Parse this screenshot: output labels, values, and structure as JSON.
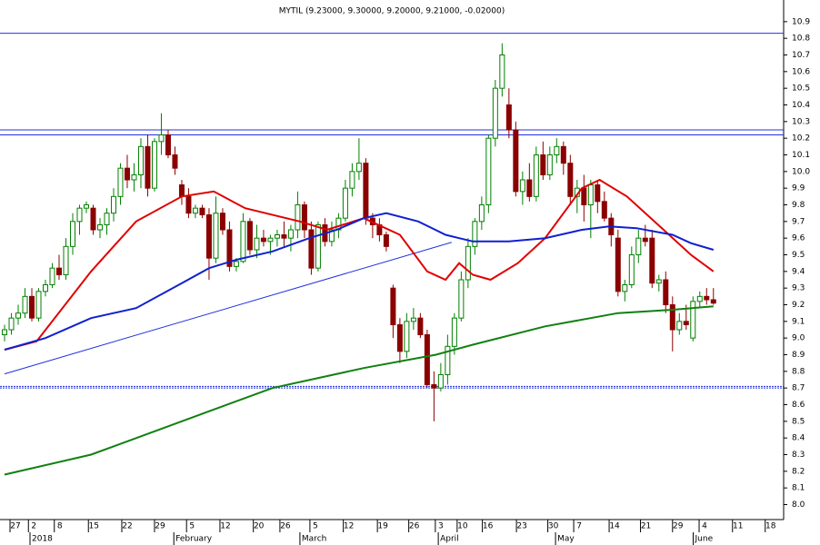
{
  "chart_data": {
    "type": "candlestick",
    "title": "MYTIL (9.23000, 9.30000, 9.20000, 9.21000, -0.02000)",
    "xlim": [
      -0.67,
      114.3
    ],
    "ylim": [
      7.91,
      11.03
    ],
    "yticks": [
      {
        "value": 8,
        "label": "8.0"
      },
      8.1,
      8.2,
      8.3,
      8.4,
      8.5,
      8.6,
      8.7,
      8.8,
      8.9,
      {
        "value": 9,
        "label": "9.0"
      },
      9.1,
      9.2,
      9.3,
      9.4,
      9.5,
      9.6,
      9.7,
      9.8,
      9.9,
      {
        "value": 10,
        "label": "10.0"
      },
      10.1,
      10.2,
      10.3,
      10.4,
      10.5,
      10.6,
      10.7,
      10.8,
      10.9
    ],
    "xticks": [
      {
        "value": 1.6,
        "label": "27"
      },
      {
        "value": 4.3,
        "label": "2"
      },
      {
        "value": 8.1,
        "label": "8"
      },
      {
        "value": 13.1,
        "label": "15"
      },
      {
        "value": 18.0,
        "label": "22"
      },
      {
        "value": 22.8,
        "label": "29"
      },
      {
        "value": 27.5,
        "label": "5"
      },
      {
        "value": 32.4,
        "label": "12"
      },
      {
        "value": 37.3,
        "label": "20"
      },
      {
        "value": 41.2,
        "label": "26"
      },
      {
        "value": 45.6,
        "label": "5"
      },
      {
        "value": 50.5,
        "label": "12"
      },
      {
        "value": 55.5,
        "label": "19"
      },
      {
        "value": 60.1,
        "label": "26"
      },
      {
        "value": 64.0,
        "label": "3"
      },
      {
        "value": 67.2,
        "label": "10"
      },
      {
        "value": 70.9,
        "label": "16"
      },
      {
        "value": 75.9,
        "label": "23"
      },
      {
        "value": 80.5,
        "label": "30"
      },
      {
        "value": 84.3,
        "label": "7"
      },
      {
        "value": 89.5,
        "label": "14"
      },
      {
        "value": 94.1,
        "label": "21"
      },
      {
        "value": 98.8,
        "label": "29"
      },
      {
        "value": 102.7,
        "label": "4"
      },
      {
        "value": 107.6,
        "label": "11"
      },
      {
        "value": 112.4,
        "label": "18"
      }
    ],
    "period_labels": [
      {
        "value": 4.0,
        "label": "2018"
      },
      {
        "value": 25.1,
        "label": "February"
      },
      {
        "value": 43.6,
        "label": "March"
      },
      {
        "value": 63.9,
        "label": "April"
      },
      {
        "value": 81.1,
        "label": "May"
      },
      {
        "value": 101.3,
        "label": "June"
      }
    ],
    "up_color": "#008000",
    "down_color": "#8b0000",
    "candles": [
      {
        "o": 9.02,
        "h": 9.08,
        "l": 8.98,
        "c": 9.05
      },
      {
        "o": 9.05,
        "h": 9.15,
        "l": 9.02,
        "c": 9.12
      },
      {
        "o": 9.12,
        "h": 9.2,
        "l": 9.08,
        "c": 9.15
      },
      {
        "o": 9.15,
        "h": 9.3,
        "l": 9.12,
        "c": 9.25
      },
      {
        "o": 9.25,
        "h": 9.3,
        "l": 9.1,
        "c": 9.12
      },
      {
        "o": 9.12,
        "h": 9.3,
        "l": 9.1,
        "c": 9.28
      },
      {
        "o": 9.28,
        "h": 9.35,
        "l": 9.25,
        "c": 9.32
      },
      {
        "o": 9.32,
        "h": 9.45,
        "l": 9.3,
        "c": 9.42
      },
      {
        "o": 9.42,
        "h": 9.5,
        "l": 9.35,
        "c": 9.38
      },
      {
        "o": 9.38,
        "h": 9.6,
        "l": 9.35,
        "c": 9.55
      },
      {
        "o": 9.55,
        "h": 9.75,
        "l": 9.5,
        "c": 9.7
      },
      {
        "o": 9.7,
        "h": 9.8,
        "l": 9.62,
        "c": 9.78
      },
      {
        "o": 9.78,
        "h": 9.82,
        "l": 9.75,
        "c": 9.8
      },
      {
        "o": 9.78,
        "h": 9.8,
        "l": 9.62,
        "c": 9.65
      },
      {
        "o": 9.65,
        "h": 9.72,
        "l": 9.6,
        "c": 9.68
      },
      {
        "o": 9.68,
        "h": 9.78,
        "l": 9.62,
        "c": 9.75
      },
      {
        "o": 9.75,
        "h": 9.9,
        "l": 9.7,
        "c": 9.85
      },
      {
        "o": 9.85,
        "h": 10.05,
        "l": 9.8,
        "c": 10.02
      },
      {
        "o": 10.02,
        "h": 10.1,
        "l": 9.9,
        "c": 9.95
      },
      {
        "o": 9.95,
        "h": 10.05,
        "l": 9.88,
        "c": 9.98
      },
      {
        "o": 9.98,
        "h": 10.2,
        "l": 9.9,
        "c": 10.15
      },
      {
        "o": 10.15,
        "h": 10.22,
        "l": 9.85,
        "c": 9.9
      },
      {
        "o": 9.9,
        "h": 10.2,
        "l": 9.88,
        "c": 10.18
      },
      {
        "o": 10.18,
        "h": 10.35,
        "l": 10.1,
        "c": 10.22
      },
      {
        "o": 10.22,
        "h": 10.25,
        "l": 10.08,
        "c": 10.1
      },
      {
        "o": 10.1,
        "h": 10.15,
        "l": 9.98,
        "c": 10.02
      },
      {
        "o": 9.92,
        "h": 9.95,
        "l": 9.8,
        "c": 9.85
      },
      {
        "o": 9.85,
        "h": 9.9,
        "l": 9.72,
        "c": 9.75
      },
      {
        "o": 9.75,
        "h": 9.8,
        "l": 9.72,
        "c": 9.78
      },
      {
        "o": 9.78,
        "h": 9.8,
        "l": 9.72,
        "c": 9.74
      },
      {
        "o": 9.74,
        "h": 9.78,
        "l": 9.35,
        "c": 9.48
      },
      {
        "o": 9.48,
        "h": 9.85,
        "l": 9.45,
        "c": 9.75
      },
      {
        "o": 9.75,
        "h": 9.78,
        "l": 9.62,
        "c": 9.65
      },
      {
        "o": 9.65,
        "h": 9.7,
        "l": 9.4,
        "c": 9.43
      },
      {
        "o": 9.43,
        "h": 9.48,
        "l": 9.4,
        "c": 9.46
      },
      {
        "o": 9.46,
        "h": 9.75,
        "l": 9.45,
        "c": 9.7
      },
      {
        "o": 9.7,
        "h": 9.72,
        "l": 9.5,
        "c": 9.53
      },
      {
        "o": 9.53,
        "h": 9.68,
        "l": 9.48,
        "c": 9.6
      },
      {
        "o": 9.6,
        "h": 9.65,
        "l": 9.55,
        "c": 9.58
      },
      {
        "o": 9.58,
        "h": 9.62,
        "l": 9.5,
        "c": 9.6
      },
      {
        "o": 9.6,
        "h": 9.65,
        "l": 9.55,
        "c": 9.62
      },
      {
        "o": 9.62,
        "h": 9.7,
        "l": 9.55,
        "c": 9.6
      },
      {
        "o": 9.6,
        "h": 9.68,
        "l": 9.52,
        "c": 9.65
      },
      {
        "o": 9.65,
        "h": 9.88,
        "l": 9.6,
        "c": 9.8
      },
      {
        "o": 9.8,
        "h": 9.82,
        "l": 9.6,
        "c": 9.65
      },
      {
        "o": 9.65,
        "h": 9.7,
        "l": 9.38,
        "c": 9.42
      },
      {
        "o": 9.42,
        "h": 9.7,
        "l": 9.4,
        "c": 9.68
      },
      {
        "o": 9.68,
        "h": 9.72,
        "l": 9.55,
        "c": 9.58
      },
      {
        "o": 9.58,
        "h": 9.7,
        "l": 9.55,
        "c": 9.65
      },
      {
        "o": 9.65,
        "h": 9.75,
        "l": 9.6,
        "c": 9.72
      },
      {
        "o": 9.72,
        "h": 9.95,
        "l": 9.7,
        "c": 9.9
      },
      {
        "o": 9.9,
        "h": 10.05,
        "l": 9.85,
        "c": 10.0
      },
      {
        "o": 10.0,
        "h": 10.2,
        "l": 9.95,
        "c": 10.05
      },
      {
        "o": 10.05,
        "h": 10.08,
        "l": 9.68,
        "c": 9.72
      },
      {
        "o": 9.72,
        "h": 9.75,
        "l": 9.6,
        "c": 9.68
      },
      {
        "o": 9.68,
        "h": 9.72,
        "l": 9.58,
        "c": 9.62
      },
      {
        "o": 9.62,
        "h": 9.64,
        "l": 9.52,
        "c": 9.55
      },
      {
        "o": 9.3,
        "h": 9.32,
        "l": 9.0,
        "c": 9.08
      },
      {
        "o": 9.08,
        "h": 9.12,
        "l": 8.85,
        "c": 8.92
      },
      {
        "o": 8.92,
        "h": 9.15,
        "l": 8.88,
        "c": 9.1
      },
      {
        "o": 9.1,
        "h": 9.18,
        "l": 9.05,
        "c": 9.12
      },
      {
        "o": 9.12,
        "h": 9.15,
        "l": 9.0,
        "c": 9.02
      },
      {
        "o": 9.02,
        "h": 9.05,
        "l": 8.7,
        "c": 8.72
      },
      {
        "o": 8.72,
        "h": 8.8,
        "l": 8.5,
        "c": 8.7
      },
      {
        "o": 8.7,
        "h": 8.85,
        "l": 8.68,
        "c": 8.78
      },
      {
        "o": 8.78,
        "h": 9.02,
        "l": 8.72,
        "c": 8.95
      },
      {
        "o": 8.95,
        "h": 9.15,
        "l": 8.9,
        "c": 9.12
      },
      {
        "o": 9.12,
        "h": 9.4,
        "l": 9.1,
        "c": 9.35
      },
      {
        "o": 9.35,
        "h": 9.6,
        "l": 9.3,
        "c": 9.55
      },
      {
        "o": 9.55,
        "h": 9.72,
        "l": 9.5,
        "c": 9.7
      },
      {
        "o": 9.7,
        "h": 9.85,
        "l": 9.65,
        "c": 9.8
      },
      {
        "o": 9.8,
        "h": 10.22,
        "l": 9.75,
        "c": 10.2
      },
      {
        "o": 10.2,
        "h": 10.55,
        "l": 10.15,
        "c": 10.5
      },
      {
        "o": 10.5,
        "h": 10.77,
        "l": 10.45,
        "c": 10.7
      },
      {
        "o": 10.4,
        "h": 10.5,
        "l": 10.2,
        "c": 10.25
      },
      {
        "o": 10.25,
        "h": 10.3,
        "l": 9.85,
        "c": 9.88
      },
      {
        "o": 9.88,
        "h": 10.0,
        "l": 9.8,
        "c": 9.95
      },
      {
        "o": 9.95,
        "h": 10.05,
        "l": 9.82,
        "c": 9.85
      },
      {
        "o": 9.85,
        "h": 10.15,
        "l": 9.82,
        "c": 10.1
      },
      {
        "o": 10.1,
        "h": 10.18,
        "l": 9.95,
        "c": 9.98
      },
      {
        "o": 9.98,
        "h": 10.15,
        "l": 9.95,
        "c": 10.1
      },
      {
        "o": 10.1,
        "h": 10.2,
        "l": 10.05,
        "c": 10.15
      },
      {
        "o": 10.15,
        "h": 10.18,
        "l": 9.98,
        "c": 10.05
      },
      {
        "o": 10.05,
        "h": 10.1,
        "l": 9.8,
        "c": 9.85
      },
      {
        "o": 9.85,
        "h": 9.95,
        "l": 9.75,
        "c": 9.9
      },
      {
        "o": 9.9,
        "h": 9.98,
        "l": 9.7,
        "c": 9.8
      },
      {
        "o": 9.8,
        "h": 9.95,
        "l": 9.6,
        "c": 9.92
      },
      {
        "o": 9.92,
        "h": 9.95,
        "l": 9.75,
        "c": 9.82
      },
      {
        "o": 9.82,
        "h": 9.88,
        "l": 9.7,
        "c": 9.72
      },
      {
        "o": 9.72,
        "h": 9.75,
        "l": 9.55,
        "c": 9.62
      },
      {
        "o": 9.6,
        "h": 9.65,
        "l": 9.25,
        "c": 9.28
      },
      {
        "o": 9.28,
        "h": 9.35,
        "l": 9.22,
        "c": 9.32
      },
      {
        "o": 9.32,
        "h": 9.55,
        "l": 9.3,
        "c": 9.5
      },
      {
        "o": 9.5,
        "h": 9.65,
        "l": 9.45,
        "c": 9.6
      },
      {
        "o": 9.6,
        "h": 9.68,
        "l": 9.55,
        "c": 9.58
      },
      {
        "o": 9.6,
        "h": 9.65,
        "l": 9.3,
        "c": 9.33
      },
      {
        "o": 9.33,
        "h": 9.38,
        "l": 9.28,
        "c": 9.35
      },
      {
        "o": 9.35,
        "h": 9.4,
        "l": 9.15,
        "c": 9.2
      },
      {
        "o": 9.2,
        "h": 9.25,
        "l": 8.92,
        "c": 9.05
      },
      {
        "o": 9.05,
        "h": 9.15,
        "l": 9.02,
        "c": 9.1
      },
      {
        "o": 9.1,
        "h": 9.2,
        "l": 9.05,
        "c": 9.08
      },
      {
        "o": 9.0,
        "h": 9.25,
        "l": 8.98,
        "c": 9.22
      },
      {
        "o": 9.22,
        "h": 9.28,
        "l": 9.18,
        "c": 9.25
      },
      {
        "o": 9.25,
        "h": 9.3,
        "l": 9.2,
        "c": 9.23
      },
      {
        "o": 9.23,
        "h": 9.3,
        "l": 9.2,
        "c": 9.21
      }
    ],
    "series": [
      {
        "color": "#e00000",
        "x": [
          0,
          4.7,
          12.7,
          19.3,
          26,
          30.7,
          35.3,
          43.3,
          47.3,
          52.7,
          58,
          62,
          64.7,
          66.7,
          68.7,
          71.3,
          75.3,
          79.3,
          84.7,
          87.3,
          91.3,
          96.7,
          100.7,
          104
        ],
        "values": [
          8.93,
          8.98,
          9.4,
          9.7,
          9.85,
          9.88,
          9.78,
          9.7,
          9.65,
          9.72,
          9.62,
          9.4,
          9.35,
          9.45,
          9.38,
          9.35,
          9.45,
          9.6,
          9.9,
          9.95,
          9.85,
          9.65,
          9.5,
          9.4
        ]
      },
      {
        "color": "#1020d0",
        "x": [
          0,
          6,
          12.7,
          19.3,
          26,
          30,
          34,
          39.3,
          44.7,
          48.7,
          52.7,
          56,
          60.7,
          64.7,
          68.7,
          74,
          79.3,
          84.7,
          88.7,
          92.7,
          98,
          100.7,
          104
        ],
        "values": [
          8.93,
          9.0,
          9.12,
          9.18,
          9.33,
          9.42,
          9.47,
          9.52,
          9.6,
          9.65,
          9.72,
          9.75,
          9.7,
          9.62,
          9.58,
          9.58,
          9.6,
          9.65,
          9.67,
          9.66,
          9.62,
          9.57,
          9.53
        ]
      },
      {
        "color": "#108010",
        "x": [
          0,
          12.7,
          26,
          39.3,
          52.7,
          63.3,
          68.7,
          79.3,
          90,
          98,
          104
        ],
        "values": [
          8.18,
          8.3,
          8.5,
          8.7,
          8.82,
          8.9,
          8.96,
          9.07,
          9.15,
          9.17,
          9.19
        ]
      }
    ],
    "trendline": {
      "color": "#2030e0",
      "x": [
        0,
        65.6
      ],
      "values": [
        8.785,
        9.575
      ]
    },
    "hlines": {
      "color": "#2030e0",
      "values": [
        10.83,
        10.25,
        10.22,
        8.71,
        8.7
      ]
    }
  }
}
